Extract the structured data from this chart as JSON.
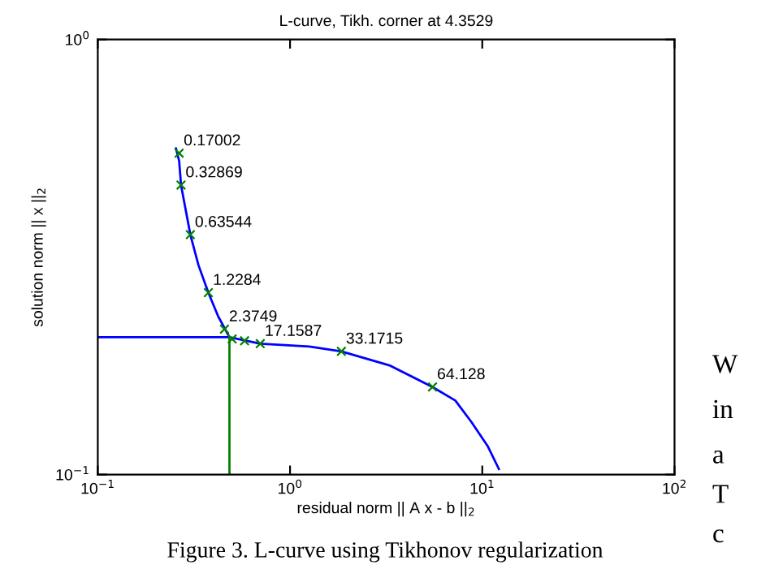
{
  "chart_data": {
    "type": "line",
    "title": "L-curve, Tikh. corner at 4.3529",
    "xlabel": "residual norm || A x - b ||$_{2}$",
    "ylabel": "solution norm || x ||$_{2}$",
    "log": "xy",
    "xlim": [
      0.1,
      100
    ],
    "ylim": [
      0.1,
      1
    ],
    "xticks": [
      {
        "value": 0.1,
        "label": "10$^{−1}$"
      },
      {
        "value": 1,
        "label": "10$^{0}$"
      },
      {
        "value": 10,
        "label": "10$^{1}$"
      },
      {
        "value": 100,
        "label": "10$^{2}$"
      }
    ],
    "yticks": [
      {
        "value": 0.1,
        "label": "10$^{−1}$"
      },
      {
        "value": 1,
        "label": "10$^{0}$"
      }
    ],
    "grid": false,
    "legend": false,
    "series": [
      {
        "color": "#0000ff",
        "marker": "none",
        "line_style": "solid",
        "x": [
          0.255,
          0.265,
          0.271,
          0.286,
          0.303,
          0.334,
          0.376,
          0.423,
          0.484,
          0.7,
          1.26,
          1.85,
          3.32,
          5.51,
          7.24,
          8.79,
          10.7,
          12.2
        ],
        "values": [
          0.562,
          0.526,
          0.463,
          0.408,
          0.356,
          0.303,
          0.262,
          0.231,
          0.207,
          0.2,
          0.197,
          0.192,
          0.178,
          0.159,
          0.148,
          0.132,
          0.116,
          0.103
        ]
      },
      {
        "type": "line",
        "color": "#0000ff",
        "marker": "none",
        "line_style": "solid",
        "x": [
          0.1,
          0.484
        ],
        "values": [
          0.207,
          0.207
        ]
      },
      {
        "type": "line",
        "color": "#008000",
        "marker": "none",
        "line_style": "solid",
        "x": [
          0.484,
          0.484
        ],
        "values": [
          0.1,
          0.207
        ]
      },
      {
        "type": "scatter",
        "color": "#008000",
        "marker": "cross",
        "x": [
          0.265,
          0.271,
          0.303,
          0.376,
          0.456,
          0.5,
          0.58,
          0.7,
          1.85,
          5.51
        ],
        "values": [
          0.548,
          0.463,
          0.356,
          0.262,
          0.216,
          0.205,
          0.203,
          0.2,
          0.192,
          0.159
        ]
      }
    ],
    "annotations": [
      {
        "text": "0.17002",
        "x": 0.265,
        "y": 0.548
      },
      {
        "text": "0.32869",
        "x": 0.271,
        "y": 0.463
      },
      {
        "text": "0.63544",
        "x": 0.303,
        "y": 0.356
      },
      {
        "text": "1.2284",
        "x": 0.376,
        "y": 0.262
      },
      {
        "text": "2.3749",
        "x": 0.456,
        "y": 0.216
      },
      {
        "text": "17.1587",
        "x": 0.7,
        "y": 0.2
      },
      {
        "text": "33.1715",
        "x": 1.85,
        "y": 0.192
      },
      {
        "text": "64.128",
        "x": 5.51,
        "y": 0.159
      },
      "Figure 3. L-curve using Tikhonov regularization",
      "W",
      "in",
      "a",
      "T",
      "c"
    ]
  }
}
